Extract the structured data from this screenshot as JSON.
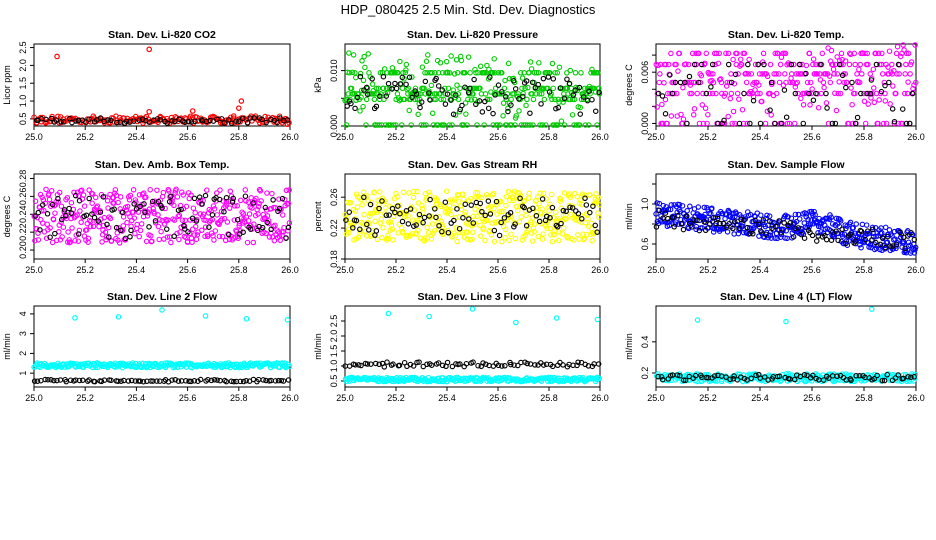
{
  "page": {
    "title": "HDP_080425  2.5 Min. Std. Dev. Diagnostics"
  },
  "chart_data": [
    {
      "type": "scatter",
      "title": "Stan. Dev. Li-820 CO2",
      "ylabel": "Licor ppm",
      "color": "#ff0000",
      "xlim": [
        25.0,
        26.0
      ],
      "ylim": [
        0.3,
        2.6
      ],
      "xticks": [
        25.0,
        25.2,
        25.4,
        25.6,
        25.8,
        26.0
      ],
      "yticks": [
        0.5,
        1.0,
        1.5,
        2.0,
        2.5
      ],
      "ytick_labels": [
        "0.5",
        "1.0",
        "1.5",
        "2.0",
        "2.5"
      ],
      "series": [
        {
          "name": "colored",
          "pattern": {
            "base": 0.48,
            "spread": 0.1,
            "n": 180
          },
          "x": [
            25.09,
            25.45,
            25.45,
            25.62,
            25.78,
            25.8,
            25.81,
            25.99
          ],
          "y": [
            2.25,
            2.45,
            0.7,
            0.72,
            0.58,
            0.8,
            1.0,
            0.35
          ]
        },
        {
          "name": "black",
          "pattern": {
            "base": 0.45,
            "spread": 0.08,
            "n": 70
          }
        }
      ]
    },
    {
      "type": "scatter",
      "title": "Stan. Dev. Li-820 Pressure",
      "ylabel": "kPa",
      "color": "#00cc00",
      "xlim": [
        25.0,
        26.0
      ],
      "ylim": [
        0.0,
        0.0148
      ],
      "xticks": [
        25.0,
        25.2,
        25.4,
        25.6,
        25.8,
        26.0
      ],
      "yticks": [
        0.0,
        0.005,
        0.01
      ],
      "ytick_labels": [
        "0.000",
        "",
        "0.010"
      ],
      "series": [
        {
          "name": "colored",
          "pattern": {
            "base": 0.0058,
            "spread": 0.0055,
            "n": 420,
            "levels": [
              0.0,
              0.0048,
              0.0058,
              0.0068,
              0.0096
            ],
            "trend": [
              0.0082,
              0.006
            ]
          }
        },
        {
          "name": "black",
          "pattern": {
            "base": 0.0055,
            "spread": 0.0035,
            "n": 90
          }
        }
      ]
    },
    {
      "type": "scatter",
      "title": "Stan. Dev. Li-820 Temp.",
      "ylabel": "degrees C",
      "color": "#ff00ff",
      "xlim": [
        25.0,
        26.0
      ],
      "ylim": [
        -0.0003,
        0.0093
      ],
      "xticks": [
        25.0,
        25.2,
        25.4,
        25.6,
        25.8,
        26.0
      ],
      "yticks": [
        0.0,
        0.002,
        0.004,
        0.006,
        0.008
      ],
      "ytick_labels": [
        "0.000",
        "",
        "",
        "0.006",
        ""
      ],
      "series": [
        {
          "name": "colored",
          "pattern": {
            "base": 0.0045,
            "spread": 0.0038,
            "n": 380,
            "levels": [
              0.0,
              0.0035,
              0.0048,
              0.0058,
              0.0069,
              0.0082
            ],
            "trend": [
              0.004,
              0.0058
            ]
          }
        },
        {
          "name": "black",
          "pattern": {
            "base": 0.003,
            "spread": 0.003,
            "n": 70,
            "levels": [
              0.0,
              0.0035,
              0.0048,
              0.0069
            ]
          }
        }
      ]
    },
    {
      "type": "scatter",
      "title": "Stan. Dev. Amb. Box Temp.",
      "ylabel": "degrees C",
      "color": "#ff00ff",
      "xlim": [
        25.0,
        26.0
      ],
      "ylim": [
        0.19,
        0.285
      ],
      "xticks": [
        25.0,
        25.2,
        25.4,
        25.6,
        25.8,
        26.0
      ],
      "yticks": [
        0.2,
        0.22,
        0.24,
        0.26,
        0.28
      ],
      "ytick_labels": [
        "0.20",
        "0.22",
        "0.24",
        "0.26",
        "0.28"
      ],
      "series": [
        {
          "name": "colored",
          "pattern": {
            "base": 0.238,
            "spread": 0.03,
            "n": 420
          }
        },
        {
          "name": "black",
          "pattern": {
            "base": 0.238,
            "spread": 0.025,
            "n": 90
          }
        }
      ]
    },
    {
      "type": "scatter",
      "title": "Stan. Dev. Gas Stream RH",
      "ylabel": "percent",
      "color": "#ffff00",
      "xlim": [
        25.0,
        26.0
      ],
      "ylim": [
        0.18,
        0.29
      ],
      "xticks": [
        25.0,
        25.2,
        25.4,
        25.6,
        25.8,
        26.0
      ],
      "yticks": [
        0.18,
        0.22,
        0.26
      ],
      "ytick_labels": [
        "0.18",
        "0.22",
        "0.26"
      ],
      "series": [
        {
          "name": "colored",
          "pattern": {
            "base": 0.235,
            "spread": 0.033,
            "n": 420
          }
        },
        {
          "name": "black",
          "pattern": {
            "base": 0.235,
            "spread": 0.025,
            "n": 90
          }
        }
      ]
    },
    {
      "type": "scatter",
      "title": "Stan. Dev. Sample Flow",
      "ylabel": "ml/min",
      "color": "#0000ff",
      "xlim": [
        25.0,
        26.0
      ],
      "ylim": [
        0.45,
        1.3
      ],
      "xticks": [
        25.0,
        25.2,
        25.4,
        25.6,
        25.8,
        26.0
      ],
      "yticks": [
        0.6,
        0.8,
        1.0,
        1.2
      ],
      "ytick_labels": [
        "0.6",
        "",
        "1.0",
        ""
      ],
      "series": [
        {
          "name": "colored",
          "pattern": {
            "base": 0.72,
            "spread": 0.12,
            "n": 420,
            "trend": [
              0.9,
              0.62
            ],
            "bump": [
              25.62,
              0.1
            ]
          }
        },
        {
          "name": "black",
          "pattern": {
            "base": 0.7,
            "spread": 0.09,
            "n": 90,
            "trend": [
              0.85,
              0.62
            ]
          }
        }
      ]
    },
    {
      "type": "scatter",
      "title": "Stan. Dev. Line 2 Flow",
      "ylabel": "ml/min",
      "color": "#00ffff",
      "xlim": [
        25.0,
        26.0
      ],
      "ylim": [
        0.3,
        4.4
      ],
      "xticks": [
        25.0,
        25.2,
        25.4,
        25.6,
        25.8,
        26.0
      ],
      "yticks": [
        1,
        2,
        3,
        4
      ],
      "ytick_labels": [
        "1",
        "2",
        "3",
        "4"
      ],
      "series": [
        {
          "name": "colored",
          "pattern": {
            "base": 1.4,
            "spread": 0.12,
            "n": 300
          },
          "x": [
            25.16,
            25.33,
            25.5,
            25.67,
            25.83,
            25.99
          ],
          "y": [
            3.8,
            3.85,
            4.2,
            3.9,
            3.75,
            3.7
          ]
        },
        {
          "name": "black",
          "pattern": {
            "base": 0.62,
            "spread": 0.06,
            "n": 80
          }
        }
      ]
    },
    {
      "type": "scatter",
      "title": "Stan. Dev. Line 3 Flow",
      "ylabel": "ml/min",
      "color": "#00ffff",
      "xlim": [
        25.0,
        26.0
      ],
      "ylim": [
        0.3,
        3.0
      ],
      "xticks": [
        25.0,
        25.2,
        25.4,
        25.6,
        25.8,
        26.0
      ],
      "yticks": [
        0.5,
        1.0,
        1.5,
        2.0,
        2.5
      ],
      "ytick_labels": [
        "0.5",
        "1.0",
        "1.5",
        "2.0",
        "2.5"
      ],
      "series": [
        {
          "name": "colored",
          "pattern": {
            "base": 0.55,
            "spread": 0.07,
            "n": 300
          },
          "x": [
            25.17,
            25.33,
            25.5,
            25.67,
            25.83,
            25.99
          ],
          "y": [
            2.75,
            2.65,
            2.9,
            2.45,
            2.6,
            2.55
          ]
        },
        {
          "name": "black",
          "pattern": {
            "base": 1.05,
            "spread": 0.08,
            "n": 80
          }
        }
      ]
    },
    {
      "type": "scatter",
      "title": "Stan. Dev. Line 4 (LT) Flow",
      "ylabel": "ml/min",
      "color": "#00ffff",
      "xlim": [
        25.0,
        26.0
      ],
      "ylim": [
        0.11,
        0.63
      ],
      "xticks": [
        25.0,
        25.2,
        25.4,
        25.6,
        25.8,
        26.0
      ],
      "yticks": [
        0.2,
        0.4
      ],
      "ytick_labels": [
        "0.2",
        "0.4"
      ],
      "series": [
        {
          "name": "colored",
          "pattern": {
            "base": 0.17,
            "spread": 0.025,
            "n": 300
          },
          "x": [
            25.16,
            25.5,
            25.83
          ],
          "y": [
            0.54,
            0.53,
            0.61
          ]
        },
        {
          "name": "black",
          "pattern": {
            "base": 0.17,
            "spread": 0.02,
            "n": 80
          }
        }
      ]
    }
  ]
}
